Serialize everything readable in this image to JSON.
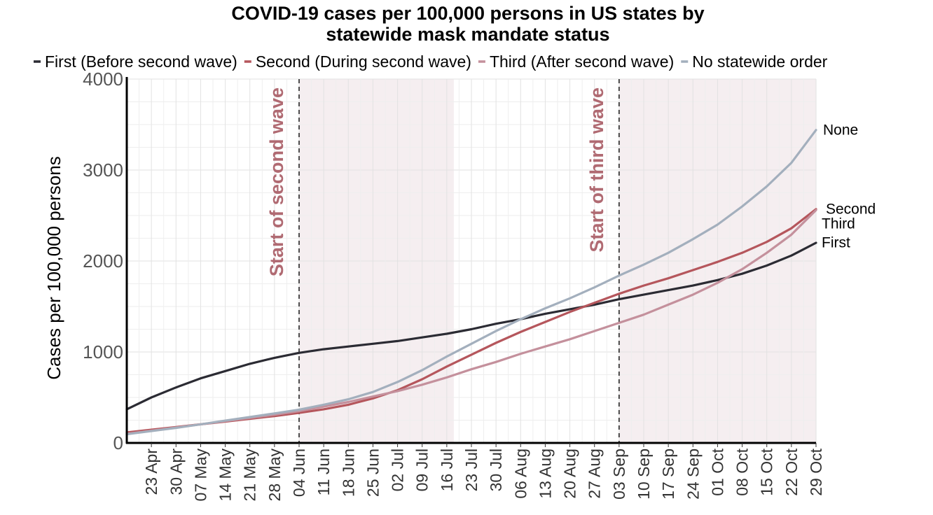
{
  "chart_data": {
    "type": "line",
    "title_lines": [
      "COVID-19 cases per 100,000 persons in US states by",
      "statewide mask mandate status"
    ],
    "xlabel": "",
    "ylabel": "Cases per 100,000 persons",
    "ylim": [
      0,
      4000
    ],
    "yticks": [
      0,
      1000,
      2000,
      3000,
      4000
    ],
    "x_start": "2020-04-16",
    "x_end": "2020-10-29",
    "xticks": [
      {
        "date": "2020-04-23",
        "label": "23 Apr"
      },
      {
        "date": "2020-04-30",
        "label": "30 Apr"
      },
      {
        "date": "2020-05-07",
        "label": "07 May"
      },
      {
        "date": "2020-05-14",
        "label": "14 May"
      },
      {
        "date": "2020-05-21",
        "label": "21 May"
      },
      {
        "date": "2020-05-28",
        "label": "28 May"
      },
      {
        "date": "2020-06-04",
        "label": "04 Jun"
      },
      {
        "date": "2020-06-11",
        "label": "11 Jun"
      },
      {
        "date": "2020-06-18",
        "label": "18 Jun"
      },
      {
        "date": "2020-06-25",
        "label": "25 Jun"
      },
      {
        "date": "2020-07-02",
        "label": "02 Jul"
      },
      {
        "date": "2020-07-09",
        "label": "09 Jul"
      },
      {
        "date": "2020-07-16",
        "label": "16 Jul"
      },
      {
        "date": "2020-07-23",
        "label": "23 Jul"
      },
      {
        "date": "2020-07-30",
        "label": "30 Jul"
      },
      {
        "date": "2020-08-06",
        "label": "06 Aug"
      },
      {
        "date": "2020-08-13",
        "label": "13 Aug"
      },
      {
        "date": "2020-08-20",
        "label": "20 Aug"
      },
      {
        "date": "2020-08-27",
        "label": "27 Aug"
      },
      {
        "date": "2020-09-03",
        "label": "03 Sep"
      },
      {
        "date": "2020-09-10",
        "label": "10 Sep"
      },
      {
        "date": "2020-09-17",
        "label": "17 Sep"
      },
      {
        "date": "2020-09-24",
        "label": "24 Sep"
      },
      {
        "date": "2020-10-01",
        "label": "01 Oct"
      },
      {
        "date": "2020-10-08",
        "label": "08 Oct"
      },
      {
        "date": "2020-10-15",
        "label": "15 Oct"
      },
      {
        "date": "2020-10-22",
        "label": "22 Oct"
      },
      {
        "date": "2020-10-29",
        "label": "29 Oct"
      }
    ],
    "grid": true,
    "legend_placement": "top",
    "shaded_periods": [
      {
        "start": "2020-06-04",
        "end": "2020-07-18",
        "color": "#f5eef0"
      },
      {
        "start": "2020-09-03",
        "end": "2020-10-29",
        "color": "#f5eef0"
      }
    ],
    "vlines": [
      {
        "date": "2020-06-04",
        "label": "Start of second wave",
        "color": "#b06a72"
      },
      {
        "date": "2020-09-03",
        "label": "Start of third wave",
        "color": "#b06a72"
      }
    ],
    "series": [
      {
        "name": "First (Before second wave)",
        "end_label": "First",
        "color": "#2b2b33",
        "points": [
          [
            "2020-04-16",
            370
          ],
          [
            "2020-04-23",
            500
          ],
          [
            "2020-04-30",
            610
          ],
          [
            "2020-05-07",
            710
          ],
          [
            "2020-05-14",
            790
          ],
          [
            "2020-05-21",
            870
          ],
          [
            "2020-05-28",
            935
          ],
          [
            "2020-06-04",
            990
          ],
          [
            "2020-06-11",
            1030
          ],
          [
            "2020-06-18",
            1060
          ],
          [
            "2020-06-25",
            1090
          ],
          [
            "2020-07-02",
            1120
          ],
          [
            "2020-07-09",
            1160
          ],
          [
            "2020-07-16",
            1200
          ],
          [
            "2020-07-23",
            1250
          ],
          [
            "2020-07-30",
            1310
          ],
          [
            "2020-08-06",
            1360
          ],
          [
            "2020-08-13",
            1420
          ],
          [
            "2020-08-20",
            1470
          ],
          [
            "2020-08-27",
            1520
          ],
          [
            "2020-09-03",
            1580
          ],
          [
            "2020-09-10",
            1630
          ],
          [
            "2020-09-17",
            1680
          ],
          [
            "2020-09-24",
            1730
          ],
          [
            "2020-10-01",
            1790
          ],
          [
            "2020-10-08",
            1860
          ],
          [
            "2020-10-15",
            1950
          ],
          [
            "2020-10-22",
            2060
          ],
          [
            "2020-10-29",
            2200
          ]
        ]
      },
      {
        "name": "Second (During second wave)",
        "end_label": "Second",
        "color": "#b5565c",
        "points": [
          [
            "2020-04-16",
            115
          ],
          [
            "2020-04-23",
            145
          ],
          [
            "2020-04-30",
            175
          ],
          [
            "2020-05-07",
            205
          ],
          [
            "2020-05-14",
            235
          ],
          [
            "2020-05-21",
            265
          ],
          [
            "2020-05-28",
            295
          ],
          [
            "2020-06-04",
            330
          ],
          [
            "2020-06-11",
            370
          ],
          [
            "2020-06-18",
            420
          ],
          [
            "2020-06-25",
            490
          ],
          [
            "2020-07-02",
            580
          ],
          [
            "2020-07-09",
            700
          ],
          [
            "2020-07-16",
            840
          ],
          [
            "2020-07-23",
            970
          ],
          [
            "2020-07-30",
            1100
          ],
          [
            "2020-08-06",
            1220
          ],
          [
            "2020-08-13",
            1330
          ],
          [
            "2020-08-20",
            1440
          ],
          [
            "2020-08-27",
            1540
          ],
          [
            "2020-09-03",
            1640
          ],
          [
            "2020-09-10",
            1730
          ],
          [
            "2020-09-17",
            1810
          ],
          [
            "2020-09-24",
            1900
          ],
          [
            "2020-10-01",
            1990
          ],
          [
            "2020-10-08",
            2090
          ],
          [
            "2020-10-15",
            2210
          ],
          [
            "2020-10-22",
            2360
          ],
          [
            "2020-10-29",
            2570
          ]
        ]
      },
      {
        "name": "Third (After second wave)",
        "end_label": "Third",
        "color": "#c4909c",
        "points": [
          [
            "2020-04-16",
            100
          ],
          [
            "2020-04-23",
            135
          ],
          [
            "2020-04-30",
            170
          ],
          [
            "2020-05-07",
            205
          ],
          [
            "2020-05-14",
            240
          ],
          [
            "2020-05-21",
            275
          ],
          [
            "2020-05-28",
            310
          ],
          [
            "2020-06-04",
            350
          ],
          [
            "2020-06-11",
            400
          ],
          [
            "2020-06-18",
            450
          ],
          [
            "2020-06-25",
            510
          ],
          [
            "2020-07-02",
            570
          ],
          [
            "2020-07-09",
            640
          ],
          [
            "2020-07-16",
            720
          ],
          [
            "2020-07-23",
            810
          ],
          [
            "2020-07-30",
            890
          ],
          [
            "2020-08-06",
            980
          ],
          [
            "2020-08-13",
            1060
          ],
          [
            "2020-08-20",
            1140
          ],
          [
            "2020-08-27",
            1230
          ],
          [
            "2020-09-03",
            1320
          ],
          [
            "2020-09-10",
            1410
          ],
          [
            "2020-09-17",
            1520
          ],
          [
            "2020-09-24",
            1630
          ],
          [
            "2020-10-01",
            1760
          ],
          [
            "2020-10-08",
            1910
          ],
          [
            "2020-10-15",
            2090
          ],
          [
            "2020-10-22",
            2290
          ],
          [
            "2020-10-29",
            2560
          ]
        ]
      },
      {
        "name": "No statewide order",
        "end_label": "None",
        "color": "#a3afbd",
        "points": [
          [
            "2020-04-16",
            95
          ],
          [
            "2020-04-23",
            130
          ],
          [
            "2020-04-30",
            165
          ],
          [
            "2020-05-07",
            205
          ],
          [
            "2020-05-14",
            245
          ],
          [
            "2020-05-21",
            285
          ],
          [
            "2020-05-28",
            325
          ],
          [
            "2020-06-04",
            365
          ],
          [
            "2020-06-11",
            420
          ],
          [
            "2020-06-18",
            480
          ],
          [
            "2020-06-25",
            560
          ],
          [
            "2020-07-02",
            670
          ],
          [
            "2020-07-09",
            800
          ],
          [
            "2020-07-16",
            950
          ],
          [
            "2020-07-23",
            1090
          ],
          [
            "2020-07-30",
            1230
          ],
          [
            "2020-08-06",
            1360
          ],
          [
            "2020-08-13",
            1480
          ],
          [
            "2020-08-20",
            1590
          ],
          [
            "2020-08-27",
            1710
          ],
          [
            "2020-09-03",
            1840
          ],
          [
            "2020-09-10",
            1960
          ],
          [
            "2020-09-17",
            2090
          ],
          [
            "2020-09-24",
            2240
          ],
          [
            "2020-10-01",
            2400
          ],
          [
            "2020-10-08",
            2600
          ],
          [
            "2020-10-15",
            2820
          ],
          [
            "2020-10-22",
            3080
          ],
          [
            "2020-10-29",
            3440
          ]
        ]
      }
    ]
  }
}
